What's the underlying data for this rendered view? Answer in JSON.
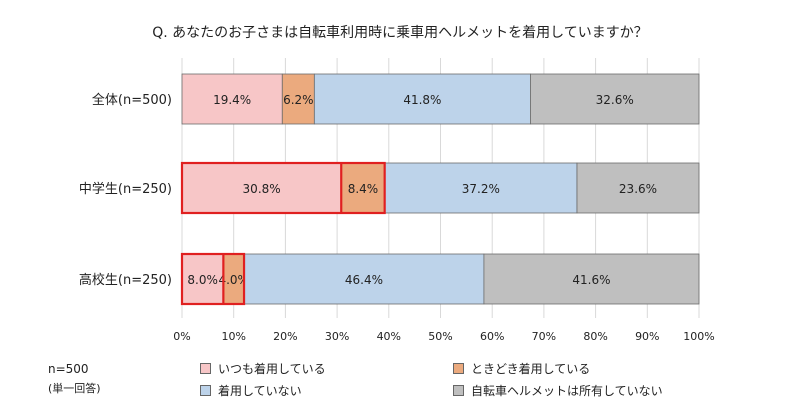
{
  "chart_data": {
    "type": "bar",
    "orientation": "horizontal",
    "stacked": true,
    "title": "Q. あなたのお子さまは自転車利用時に乗車用ヘルメットを着用していますか？",
    "categories": [
      "全体(n=500)",
      "中学生(n=250)",
      "高校生(n=250)"
    ],
    "series": [
      {
        "name": "いつも着用している",
        "color": "#f7c6c7",
        "values": [
          19.4,
          30.8,
          8.0
        ],
        "labels": [
          "19.4%",
          "30.8%",
          "8.0%"
        ]
      },
      {
        "name": "ときどき着用している",
        "color": "#ebaa7e",
        "values": [
          6.2,
          8.4,
          4.0
        ],
        "labels": [
          "6.2%",
          "8.4%",
          "4.0%"
        ]
      },
      {
        "name": "着用していない",
        "color": "#bdd3ea",
        "values": [
          41.8,
          37.2,
          46.4
        ],
        "labels": [
          "41.8%",
          "37.2%",
          "46.4%"
        ]
      },
      {
        "name": "自転車ヘルメットは所有していない",
        "color": "#bfbfbf",
        "values": [
          32.6,
          23.6,
          41.6
        ],
        "labels": [
          "32.6%",
          "23.6%",
          "41.6%"
        ]
      }
    ],
    "xlim": [
      0,
      100
    ],
    "xticks": [
      "0%",
      "10%",
      "20%",
      "30%",
      "40%",
      "50%",
      "60%",
      "70%",
      "80%",
      "90%",
      "100%"
    ],
    "grid": true,
    "legend_position": "bottom",
    "highlight": [
      {
        "category_index": 1,
        "series": [
          0,
          1
        ],
        "color": "#e02020"
      },
      {
        "category_index": 2,
        "series": [
          0,
          1
        ],
        "color": "#e02020"
      }
    ]
  },
  "notes": {
    "sample": "n=500",
    "answer_type": "(単一回答)"
  }
}
